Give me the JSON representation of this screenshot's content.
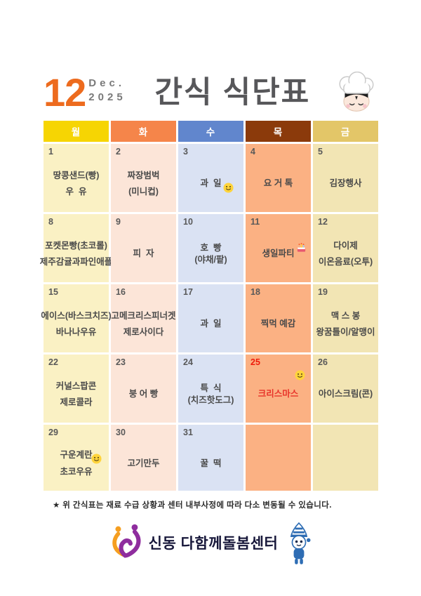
{
  "header": {
    "month_number": "12",
    "month_abbr": "Dec.",
    "year": "2025",
    "title": "간식 식단표"
  },
  "colors": {
    "mon_header": "#F6D503",
    "tue_header": "#F5854A",
    "wed_header": "#6186CD",
    "thu_header": "#8B3A0B",
    "fri_header": "#E3C668",
    "mon_body": "#FAF1C4",
    "tue_body": "#FCE5D8",
    "wed_body": "#DAE2F3",
    "thu_body": "#FBB183",
    "fri_body": "#F2E5B4",
    "date_gray": "#595959",
    "holiday_red": "#EE1C0C",
    "month_orange": "#ED6B1E",
    "title_gray": "#57575A"
  },
  "calendar": {
    "day_headers": [
      "월",
      "화",
      "수",
      "목",
      "금"
    ],
    "weeks": [
      [
        {
          "date": "1",
          "lines": [
            "땅콩샌드(빵)",
            "우  유"
          ]
        },
        {
          "date": "2",
          "lines": [
            "짜장범벅",
            "(미니컵)"
          ]
        },
        {
          "date": "3",
          "lines": [
            "과  일"
          ],
          "icon": "smiley",
          "icon_pos": "below-right"
        },
        {
          "date": "4",
          "lines": [
            "요 거 톡"
          ]
        },
        {
          "date": "5",
          "lines": [
            "김장행사"
          ]
        }
      ],
      [
        {
          "date": "8",
          "lines": [
            "포켓몬빵(초코롤)",
            "제주감귤과파인애플"
          ]
        },
        {
          "date": "9",
          "lines": [
            "피  자"
          ]
        },
        {
          "date": "10",
          "lines": [
            "호  빵",
            "(야채/팥)"
          ],
          "tight": true
        },
        {
          "date": "11",
          "lines": [
            "생일파티"
          ],
          "icon": "cake",
          "icon_pos": "inline-right"
        },
        {
          "date": "12",
          "lines": [
            "다이제",
            "이온음료(오투)"
          ]
        }
      ],
      [
        {
          "date": "15",
          "lines": [
            "에이스(바스크치즈)",
            "바나나우유"
          ]
        },
        {
          "date": "16",
          "lines": [
            "고메크리스피너겟",
            "제로사이다"
          ]
        },
        {
          "date": "17",
          "lines": [
            "과  일"
          ]
        },
        {
          "date": "18",
          "lines": [
            "찍먹 예감"
          ]
        },
        {
          "date": "19",
          "lines": [
            "맥 스 봉",
            "왕꿈틀이/알맹이"
          ]
        }
      ],
      [
        {
          "date": "22",
          "lines": [
            "커널스팝콘",
            "제로콜라"
          ]
        },
        {
          "date": "23",
          "lines": [
            "붕 어 빵"
          ]
        },
        {
          "date": "24",
          "lines": [
            "특  식",
            "(치즈핫도그)"
          ],
          "tight": true
        },
        {
          "date": "25",
          "red": true,
          "red_text": true,
          "lines": [
            "크리스마스"
          ],
          "icon": "smiley",
          "icon_pos": "top-right"
        },
        {
          "date": "26",
          "lines": [
            "아이스크림(콘)"
          ]
        }
      ],
      [
        {
          "date": "29",
          "lines": [
            "구운계란",
            "초코우유"
          ],
          "icon": "smiley",
          "icon_pos": "mid-right"
        },
        {
          "date": "30",
          "lines": [
            "고기만두"
          ]
        },
        {
          "date": "31",
          "lines": [
            "꿀  떡"
          ]
        },
        {
          "date": "",
          "lines": []
        },
        {
          "date": "",
          "lines": []
        }
      ]
    ]
  },
  "footnote": "★ 위 간식표는 재료 수급 상황과 센터 내부사정에 따라 다소 변동될 수 있습니다.",
  "footer": {
    "center_name": "신동 다함께돌봄센터"
  }
}
